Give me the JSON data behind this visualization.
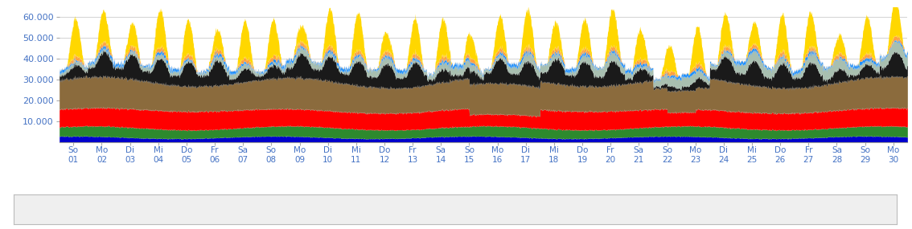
{
  "n_days": 30,
  "n_points_per_day": 96,
  "ylim": [
    0,
    65000
  ],
  "yticks": [
    10000,
    20000,
    30000,
    40000,
    50000,
    60000
  ],
  "ytick_labels": [
    "10.000",
    "20.000",
    "30.000",
    "40.000",
    "50.000",
    "60.000"
  ],
  "day_labels": [
    "So\n01",
    "Mo\n02",
    "Di\n03",
    "Mi\n04",
    "Do\n05",
    "Fr\n06",
    "Sa\n07",
    "So\n08",
    "Mo\n09",
    "Di\n10",
    "Mi\n11",
    "Do\n12",
    "Fr\n13",
    "Sa\n14",
    "So\n15",
    "Mo\n16",
    "Di\n17",
    "Mi\n18",
    "Do\n19",
    "Fr\n20",
    "Sa\n21",
    "So\n22",
    "Mo\n23",
    "Di\n24",
    "Mi\n25",
    "Do\n26",
    "Fr\n27",
    "Sa\n28",
    "So\n29",
    "Mo\n30"
  ],
  "colors": {
    "vizeromű": "#0000cc",
    "biomassza": "#2d8a2d",
    "atom": "#ff0000",
    "barnaszén": "#8B6B3D",
    "feketeszén": "#1a1a1a",
    "wind": "#a8bfb0",
    "offshore": "#1e90ff",
    "gas": "#FFA040",
    "solar": "#FFD700"
  },
  "tick_color": "#4472C4",
  "background_color": "#ffffff",
  "grid_color": "#cccccc"
}
